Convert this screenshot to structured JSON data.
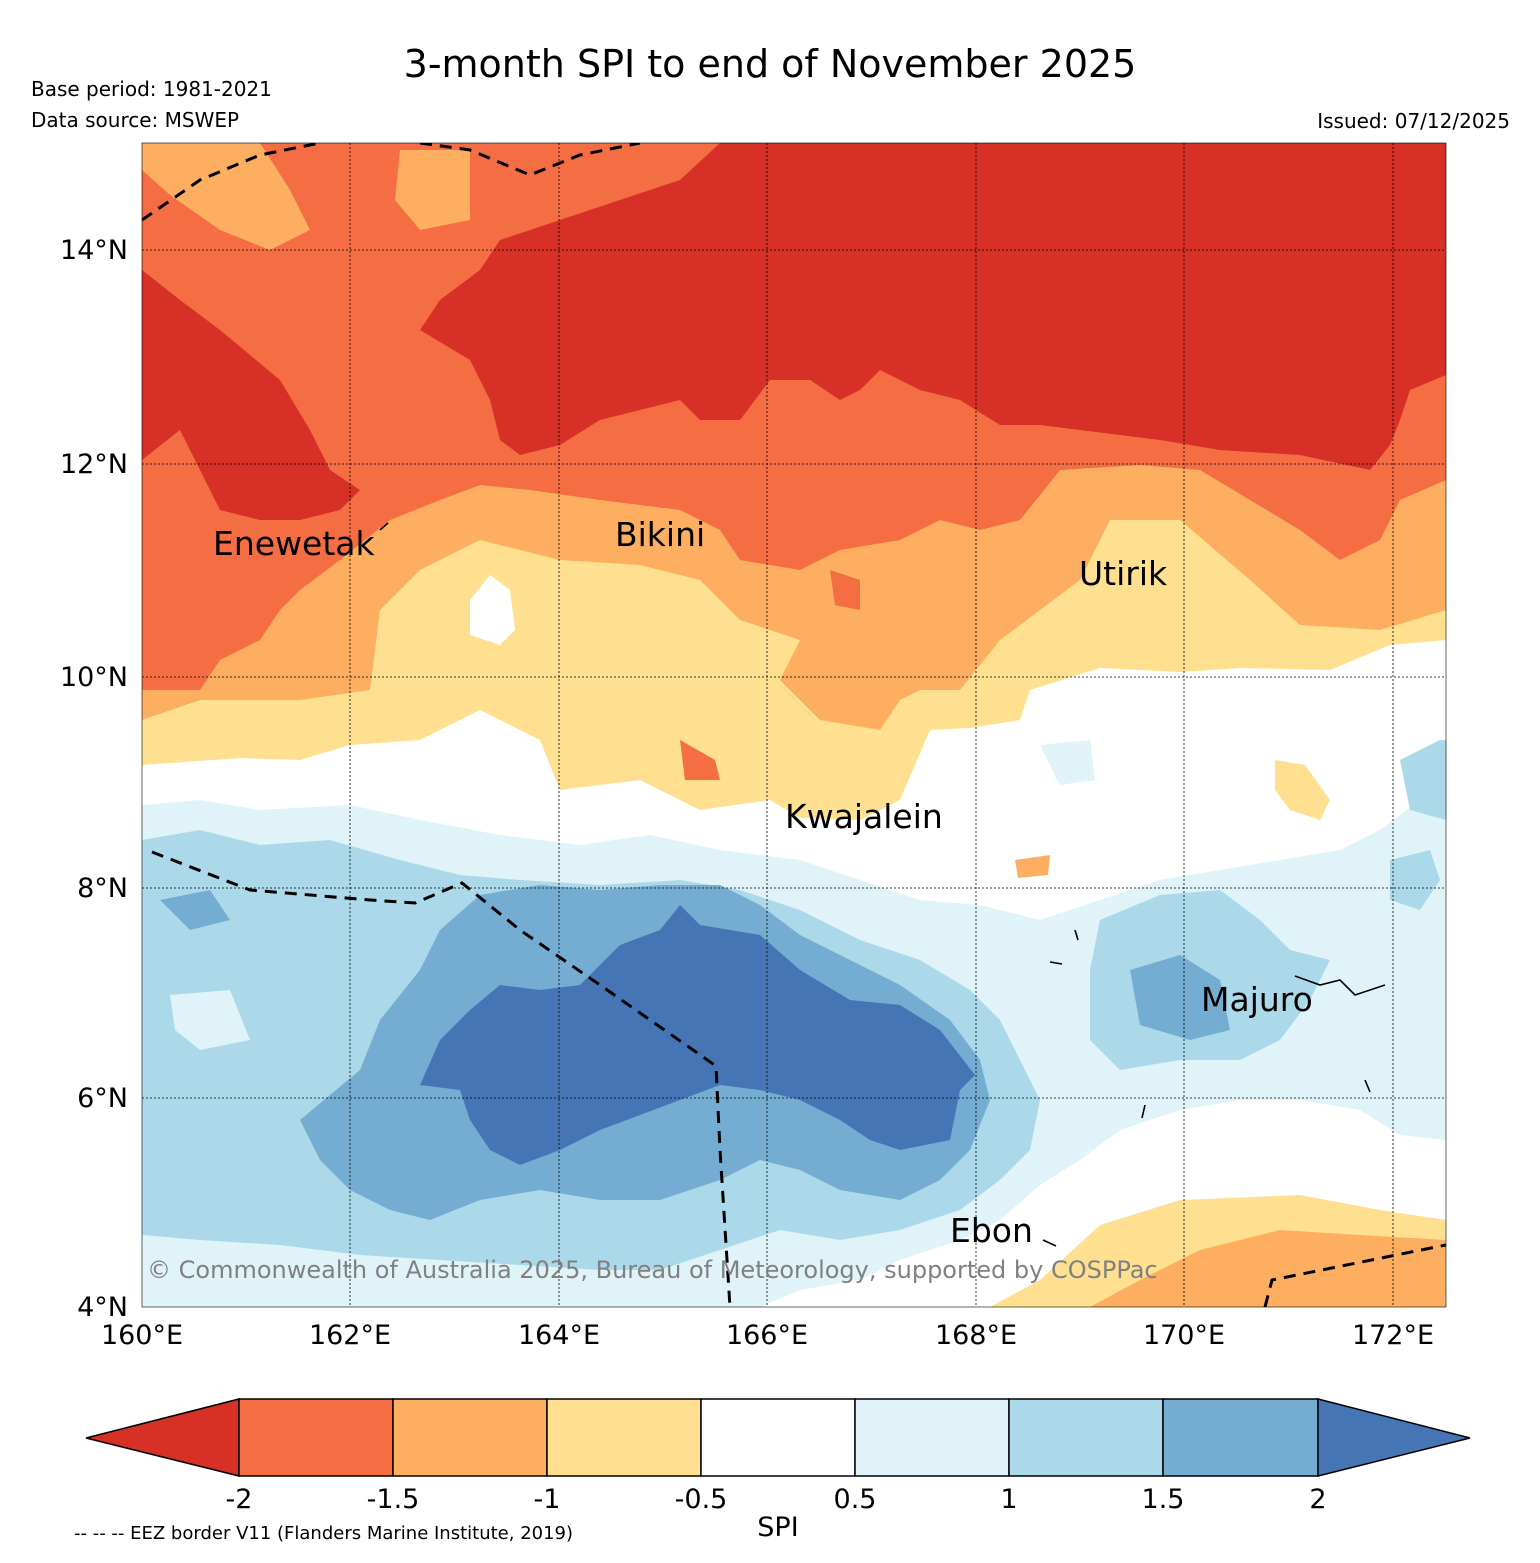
{
  "title": "3-month SPI to end of November 2025",
  "base_period": "Base period: 1981-2021",
  "data_source": "Data source: MSWEP",
  "issued": "Issued: 07/12/2025",
  "copyright": "© Commonwealth of Australia 2025, Bureau of Meteorology, supported by COSPPac",
  "eez_note": "-- -- -- EEZ border V11 (Flanders Marine Institute, 2019)",
  "map": {
    "lon_range": [
      160,
      172.5
    ],
    "lat_range": [
      4,
      15
    ],
    "lat_ticks": [
      "14°N",
      "12°N",
      "10°N",
      "8°N",
      "6°N",
      "4°N"
    ],
    "lon_ticks": [
      "160°E",
      "162°E",
      "164°E",
      "166°E",
      "168°E",
      "170°E",
      "172°E"
    ],
    "places": [
      {
        "name": "Enewetak"
      },
      {
        "name": "Bikini"
      },
      {
        "name": "Utirik"
      },
      {
        "name": "Kwajalein"
      },
      {
        "name": "Majuro"
      },
      {
        "name": "Ebon"
      }
    ]
  },
  "colorbar": {
    "title": "SPI",
    "ticks": [
      "-2",
      "-1.5",
      "-1",
      "-0.5",
      "0.5",
      "1",
      "1.5",
      "2"
    ],
    "colors": [
      "#d73027",
      "#f46d43",
      "#fdae61",
      "#fee090",
      "#ffffff",
      "#e0f3f8",
      "#abd9e9",
      "#74add1",
      "#4575b4"
    ]
  }
}
